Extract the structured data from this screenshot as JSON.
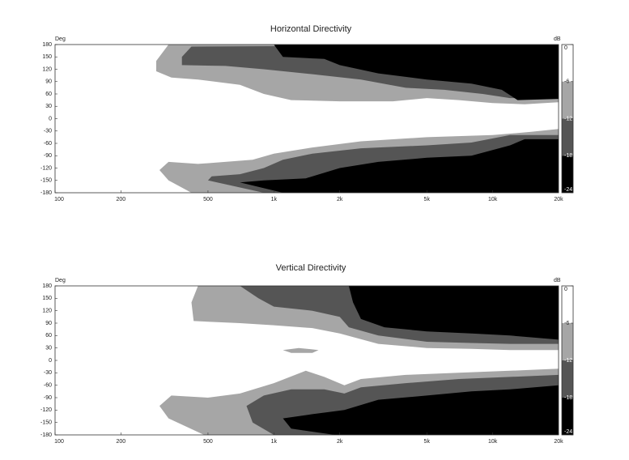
{
  "chart_data": [
    {
      "type": "contour",
      "title": "Horizontal Directivity",
      "y_label": "Deg",
      "colorbar_label": "dB",
      "log_x": true,
      "xlim": [
        100,
        20000
      ],
      "xticks": [
        100,
        200,
        500,
        {
          "value": 1000,
          "label": "1k"
        },
        {
          "value": 2000,
          "label": "2k"
        },
        {
          "value": 5000,
          "label": "5k"
        },
        {
          "value": 10000,
          "label": "10k"
        },
        {
          "value": 20000,
          "label": "20k"
        }
      ],
      "ylim": [
        -180,
        180
      ],
      "yticks": [
        180,
        150,
        120,
        90,
        60,
        30,
        0,
        -30,
        -60,
        -90,
        -120,
        -150,
        -180
      ],
      "colorbar": {
        "lim": [
          0,
          -24
        ],
        "ticks": [
          0,
          -6,
          -12,
          -18,
          -24
        ],
        "colors": [
          "#ffffff",
          "#a6a6a6",
          "#555555",
          "#000000"
        ]
      },
      "regions": [
        {
          "color": "#a6a6a6",
          "x": [
            330,
            290,
            290,
            340,
            450,
            700,
            900,
            1200,
            2000,
            3500,
            5000,
            7000,
            10000,
            14000,
            20000,
            20000
          ],
          "y": [
            180,
            140,
            115,
            100,
            95,
            82,
            60,
            45,
            42,
            42,
            50,
            45,
            38,
            35,
            40,
            180
          ]
        },
        {
          "color": "#555555",
          "x": [
            420,
            380,
            380,
            600,
            900,
            1500,
            2500,
            4000,
            6000,
            9000,
            12000,
            20000,
            20000
          ],
          "y": [
            175,
            150,
            130,
            128,
            120,
            108,
            95,
            75,
            70,
            60,
            50,
            50,
            180
          ]
        },
        {
          "color": "#000000",
          "x": [
            1000,
            1100,
            1700,
            2000,
            3000,
            5000,
            8000,
            11000,
            13000,
            20000,
            20000
          ],
          "y": [
            180,
            150,
            145,
            130,
            110,
            95,
            85,
            70,
            45,
            48,
            180
          ]
        },
        {
          "color": "#a6a6a6",
          "x": [
            420,
            330,
            300,
            330,
            450,
            800,
            1000,
            1500,
            2500,
            5000,
            10000,
            15000,
            20000,
            20000
          ],
          "y": [
            -180,
            -150,
            -125,
            -105,
            -110,
            -100,
            -85,
            -70,
            -55,
            -45,
            -40,
            -32,
            -25,
            -180
          ]
        },
        {
          "color": "#555555",
          "x": [
            900,
            500,
            520,
            700,
            900,
            1100,
            1500,
            2500,
            5000,
            8000,
            12000,
            20000,
            20000
          ],
          "y": [
            -180,
            -150,
            -140,
            -135,
            -120,
            -100,
            -85,
            -72,
            -65,
            -58,
            -40,
            -40,
            -180
          ]
        },
        {
          "color": "#000000",
          "x": [
            1100,
            700,
            900,
            1400,
            2000,
            3000,
            5000,
            8000,
            12000,
            14000,
            20000,
            20000
          ],
          "y": [
            -180,
            -155,
            -150,
            -145,
            -120,
            -105,
            -95,
            -90,
            -65,
            -50,
            -50,
            -180
          ]
        }
      ]
    },
    {
      "type": "contour",
      "title": "Vertical Directivity",
      "y_label": "Deg",
      "colorbar_label": "dB",
      "log_x": true,
      "xlim": [
        100,
        20000
      ],
      "xticks": [
        100,
        200,
        500,
        {
          "value": 1000,
          "label": "1k"
        },
        {
          "value": 2000,
          "label": "2k"
        },
        {
          "value": 5000,
          "label": "5k"
        },
        {
          "value": 10000,
          "label": "10k"
        },
        {
          "value": 20000,
          "label": "20k"
        }
      ],
      "ylim": [
        -180,
        180
      ],
      "yticks": [
        180,
        150,
        120,
        90,
        60,
        30,
        0,
        -30,
        -60,
        -90,
        -120,
        -150,
        -180
      ],
      "colorbar": {
        "lim": [
          0,
          -24
        ],
        "ticks": [
          0,
          -6,
          -12,
          -18,
          -24
        ],
        "colors": [
          "#ffffff",
          "#a6a6a6",
          "#555555",
          "#000000"
        ]
      },
      "regions": [
        {
          "color": "#a6a6a6",
          "x": [
            450,
            420,
            430,
            700,
            1000,
            1500,
            2000,
            3000,
            5000,
            8000,
            12000,
            20000,
            20000
          ],
          "y": [
            180,
            140,
            95,
            90,
            85,
            78,
            65,
            40,
            30,
            28,
            25,
            25,
            180
          ]
        },
        {
          "color": "#555555",
          "x": [
            700,
            850,
            1000,
            1500,
            2000,
            2200,
            3000,
            5000,
            8000,
            12000,
            20000,
            20000
          ],
          "y": [
            180,
            150,
            130,
            120,
            105,
            80,
            60,
            45,
            42,
            40,
            40,
            180
          ]
        },
        {
          "color": "#000000",
          "x": [
            2200,
            2300,
            2500,
            3200,
            5000,
            8000,
            12000,
            20000,
            20000
          ],
          "y": [
            180,
            140,
            100,
            80,
            70,
            65,
            60,
            50,
            180
          ]
        },
        {
          "color": "#a6a6a6",
          "x": [
            1100,
            1300,
            1600,
            1500,
            1200
          ],
          "y": [
            25,
            30,
            25,
            18,
            18
          ]
        },
        {
          "color": "#a6a6a6",
          "x": [
            480,
            330,
            300,
            340,
            500,
            700,
            1000,
            1400,
            1700,
            2100,
            2500,
            4000,
            7000,
            12000,
            20000,
            20000
          ],
          "y": [
            -180,
            -140,
            -110,
            -85,
            -90,
            -80,
            -55,
            -25,
            -40,
            -60,
            -45,
            -35,
            -30,
            -25,
            -20,
            -180
          ]
        },
        {
          "color": "#555555",
          "x": [
            1000,
            800,
            750,
            900,
            1200,
            1700,
            2100,
            2500,
            4000,
            7000,
            12000,
            20000,
            20000
          ],
          "y": [
            -180,
            -150,
            -110,
            -85,
            -70,
            -70,
            -80,
            -65,
            -55,
            -45,
            -40,
            -35,
            -180
          ]
        },
        {
          "color": "#000000",
          "x": [
            1900,
            1200,
            1100,
            1500,
            2100,
            3000,
            5000,
            8000,
            12000,
            20000,
            20000
          ],
          "y": [
            -180,
            -165,
            -140,
            -130,
            -120,
            -95,
            -85,
            -75,
            -70,
            -60,
            -180
          ]
        }
      ]
    }
  ]
}
